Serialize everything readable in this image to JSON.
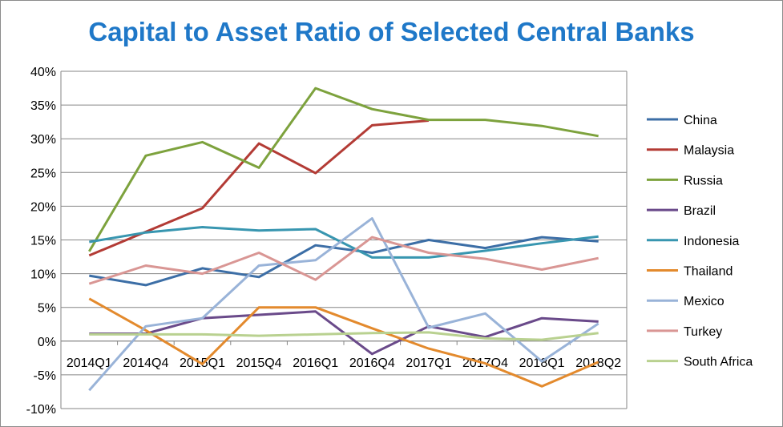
{
  "chart_data": {
    "type": "line",
    "title": "Capital to Asset Ratio of Selected Central Banks",
    "xlabel": "",
    "ylabel": "",
    "ylim": [
      -0.1,
      0.4
    ],
    "y_ticks": [
      "40%",
      "35%",
      "30%",
      "25%",
      "20%",
      "15%",
      "10%",
      "5%",
      "0%",
      "-5%",
      "-10%"
    ],
    "categories": [
      "2014Q1",
      "2014Q4",
      "2015Q1",
      "2015Q4",
      "2016Q1",
      "2016Q4",
      "2017Q1",
      "2017Q4",
      "2018Q1",
      "2018Q2"
    ],
    "grid": "horizontal",
    "legend_position": "right",
    "series": [
      {
        "name": "China",
        "color": "#3c6ea6",
        "values": [
          0.097,
          0.083,
          0.108,
          0.095,
          0.142,
          0.131,
          0.15,
          0.138,
          0.154,
          0.148
        ]
      },
      {
        "name": "Malaysia",
        "color": "#b33b35",
        "values": [
          0.127,
          0.162,
          0.197,
          0.293,
          0.249,
          0.32,
          0.327,
          null,
          null,
          null
        ]
      },
      {
        "name": "Russia",
        "color": "#7da23d",
        "values": [
          0.133,
          0.275,
          0.295,
          0.257,
          0.375,
          0.344,
          0.328,
          0.328,
          0.319,
          0.304
        ]
      },
      {
        "name": "Brazil",
        "color": "#6a4a8a",
        "values": [
          0.011,
          0.011,
          0.034,
          0.039,
          0.044,
          -0.019,
          0.022,
          0.006,
          0.034,
          0.029
        ]
      },
      {
        "name": "Indonesia",
        "color": "#3896b0",
        "values": [
          0.147,
          0.161,
          0.169,
          0.164,
          0.166,
          0.124,
          0.124,
          0.134,
          0.145,
          0.155
        ]
      },
      {
        "name": "Thailand",
        "color": "#e38a2d",
        "values": [
          0.063,
          0.016,
          -0.034,
          0.05,
          0.05,
          0.019,
          -0.011,
          -0.033,
          -0.067,
          -0.031
        ]
      },
      {
        "name": "Mexico",
        "color": "#99b3d8",
        "values": [
          -0.073,
          0.022,
          0.034,
          0.112,
          0.12,
          0.182,
          0.02,
          0.041,
          -0.03,
          0.026
        ]
      },
      {
        "name": "Turkey",
        "color": "#d99694",
        "values": [
          0.085,
          0.112,
          0.1,
          0.131,
          0.091,
          0.154,
          0.131,
          0.122,
          0.106,
          0.123
        ]
      },
      {
        "name": "South Africa",
        "color": "#b9d190",
        "values": [
          0.01,
          0.01,
          0.01,
          0.008,
          0.01,
          0.012,
          0.013,
          0.004,
          0.002,
          0.012
        ]
      }
    ]
  }
}
